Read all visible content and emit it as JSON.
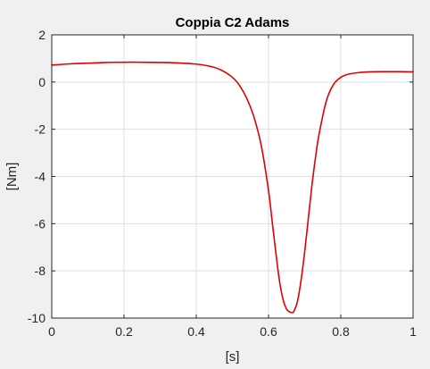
{
  "colors": {
    "figure_background": "#f0f0f0",
    "axes_background": "#ffffff",
    "axes_border": "#262626",
    "grid": "#dfdfdf",
    "line": "#e00000"
  },
  "chart_data": {
    "type": "line",
    "title": "Coppia C2 Adams",
    "xlabel": "[s]",
    "ylabel": "[Nm]",
    "xlim": [
      0,
      1
    ],
    "ylim": [
      -10,
      2
    ],
    "xticks": [
      0,
      0.2,
      0.4,
      0.6,
      0.8,
      1
    ],
    "xtick_labels": [
      "0",
      "0.2",
      "0.4",
      "0.6",
      "0.8",
      "1"
    ],
    "yticks": [
      2,
      0,
      -2,
      -4,
      -6,
      -8,
      -10
    ],
    "ytick_labels": [
      "2",
      "0",
      "-2",
      "-4",
      "-6",
      "-8",
      "-10"
    ],
    "grid": true,
    "series": [
      {
        "color": "#e00000",
        "x": [
          0,
          0.05,
          0.1,
          0.15,
          0.2,
          0.25,
          0.3,
          0.35,
          0.4,
          0.44,
          0.47,
          0.5,
          0.52,
          0.54,
          0.56,
          0.58,
          0.6,
          0.61,
          0.62,
          0.63,
          0.64,
          0.65,
          0.66,
          0.665,
          0.67,
          0.68,
          0.69,
          0.7,
          0.71,
          0.72,
          0.73,
          0.74,
          0.76,
          0.78,
          0.8,
          0.82,
          0.85,
          0.88,
          0.92,
          0.96,
          1.0
        ],
        "y": [
          0.72,
          0.77,
          0.8,
          0.83,
          0.84,
          0.84,
          0.83,
          0.81,
          0.76,
          0.66,
          0.5,
          0.2,
          -0.15,
          -0.7,
          -1.5,
          -2.7,
          -4.6,
          -5.9,
          -7.2,
          -8.4,
          -9.2,
          -9.62,
          -9.75,
          -9.76,
          -9.72,
          -9.3,
          -8.4,
          -7.2,
          -5.8,
          -4.4,
          -3.2,
          -2.2,
          -0.8,
          -0.1,
          0.2,
          0.33,
          0.4,
          0.43,
          0.44,
          0.44,
          0.43
        ]
      }
    ]
  }
}
